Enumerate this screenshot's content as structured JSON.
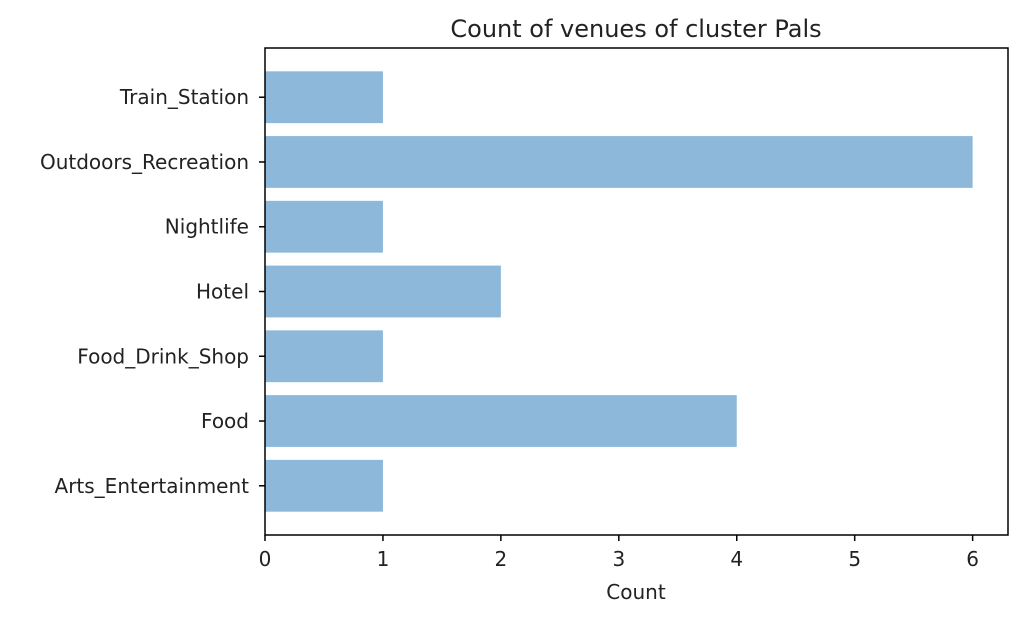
{
  "chart_data": {
    "type": "bar",
    "orientation": "horizontal",
    "title": "Count of venues of cluster Pals",
    "xlabel": "Count",
    "ylabel": "",
    "categories": [
      "Arts_Entertainment",
      "Food",
      "Food_Drink_Shop",
      "Hotel",
      "Nightlife",
      "Outdoors_Recreation",
      "Train_Station"
    ],
    "values": [
      1,
      4,
      1,
      2,
      1,
      6,
      1
    ],
    "xlim": [
      0,
      6.3
    ],
    "xticks": [
      "0",
      "1",
      "2",
      "3",
      "4",
      "5",
      "6"
    ],
    "bar_color": "#8db8da",
    "grid": false,
    "legend": "none"
  }
}
